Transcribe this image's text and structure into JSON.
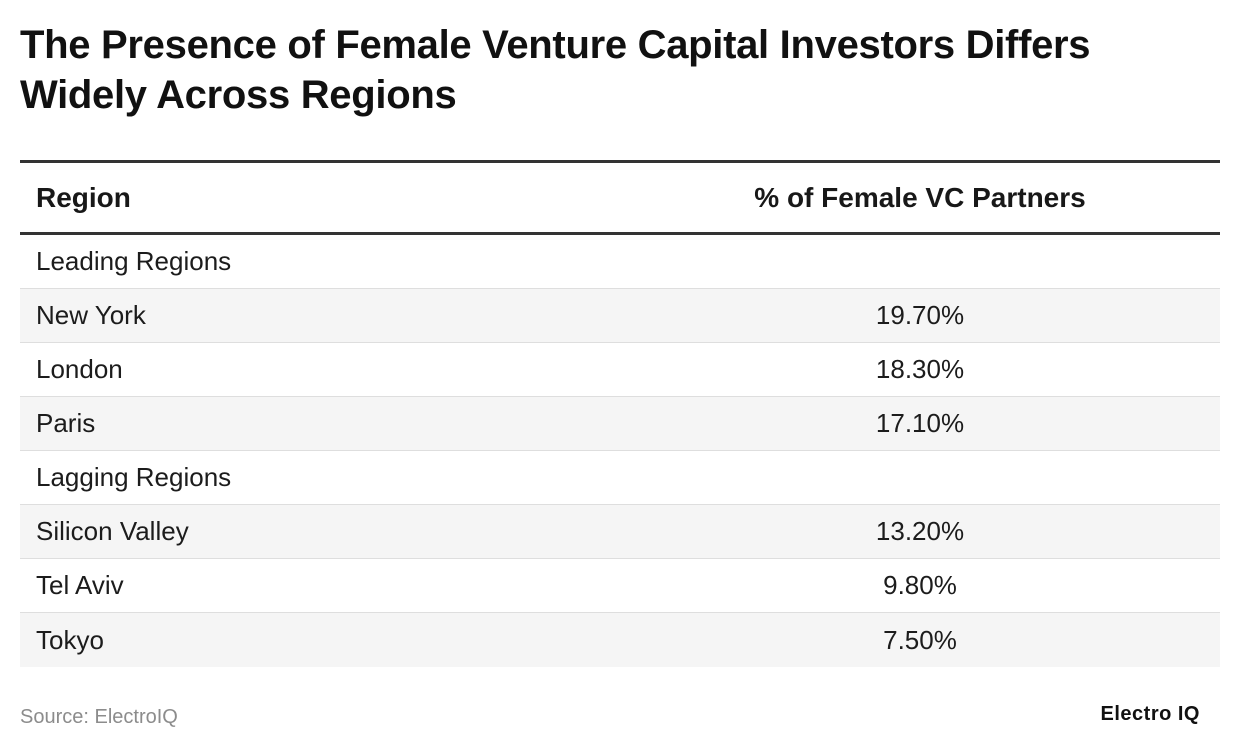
{
  "title": "The Presence of Female Venture Capital Investors Differs Widely Across Regions",
  "source": "Source: ElectroIQ",
  "brand": "Electro IQ",
  "chart_data": {
    "type": "table",
    "columns": [
      "Region",
      "% of Female VC Partners"
    ],
    "rows": [
      {
        "region": "Leading Regions",
        "value": ""
      },
      {
        "region": "New York",
        "value": "19.70%"
      },
      {
        "region": "London",
        "value": "18.30%"
      },
      {
        "region": "Paris",
        "value": "17.10%"
      },
      {
        "region": "Lagging Regions",
        "value": ""
      },
      {
        "region": "Silicon Valley",
        "value": "13.20%"
      },
      {
        "region": "Tel Aviv",
        "value": "9.80%"
      },
      {
        "region": "Tokyo",
        "value": "7.50%"
      }
    ]
  }
}
